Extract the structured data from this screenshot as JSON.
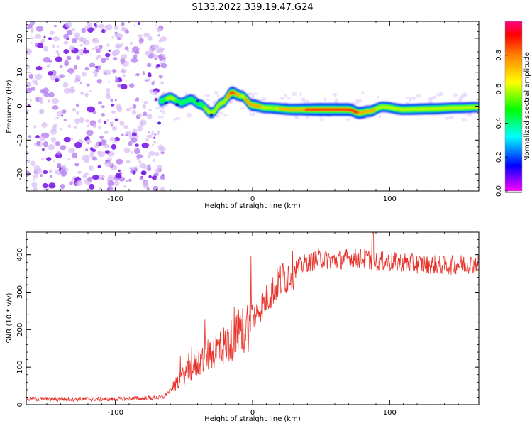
{
  "title": "S133.2022.339.19.47.G24",
  "chart_data": [
    {
      "type": "heatmap",
      "xlabel": "Height of straight line (km)",
      "ylabel": "Frequency (Hz)",
      "xlim": [
        -165,
        165
      ],
      "ylim": [
        -25,
        25
      ],
      "xticks": [
        -100,
        0,
        100
      ],
      "yticks": [
        -20,
        -10,
        0,
        10,
        20
      ],
      "colorbar": {
        "label": "Normalized spectral amplitude",
        "range": [
          0,
          1
        ],
        "ticks": [
          0.0,
          0.2,
          0.4,
          0.6,
          0.8
        ]
      },
      "noise_region_x": [
        -165,
        -70
      ],
      "ridge": [
        {
          "x": -67,
          "f": 1.5,
          "a": 0.5
        },
        {
          "x": -60,
          "f": 2.5,
          "a": 0.55
        },
        {
          "x": -52,
          "f": 1.0,
          "a": 0.5
        },
        {
          "x": -45,
          "f": 2.0,
          "a": 0.5
        },
        {
          "x": -38,
          "f": 0.5,
          "a": 0.5
        },
        {
          "x": -30,
          "f": -2.0,
          "a": 0.6
        },
        {
          "x": -22,
          "f": 1.0,
          "a": 0.55
        },
        {
          "x": -15,
          "f": 4.0,
          "a": 0.9
        },
        {
          "x": -8,
          "f": 3.0,
          "a": 0.65
        },
        {
          "x": 0,
          "f": 0.3,
          "a": 0.85
        },
        {
          "x": 10,
          "f": -0.5,
          "a": 0.65
        },
        {
          "x": 30,
          "f": -1.0,
          "a": 0.75
        },
        {
          "x": 50,
          "f": -1.0,
          "a": 1.0
        },
        {
          "x": 70,
          "f": -1.0,
          "a": 0.95
        },
        {
          "x": 78,
          "f": -2.0,
          "a": 0.85
        },
        {
          "x": 85,
          "f": -1.5,
          "a": 0.75
        },
        {
          "x": 95,
          "f": -0.2,
          "a": 0.6
        },
        {
          "x": 110,
          "f": -1.0,
          "a": 0.65
        },
        {
          "x": 130,
          "f": -0.8,
          "a": 0.7
        },
        {
          "x": 150,
          "f": -0.5,
          "a": 0.65
        },
        {
          "x": 165,
          "f": -0.3,
          "a": 0.6
        }
      ]
    },
    {
      "type": "line",
      "xlabel": "Height of straight line (km)",
      "ylabel": "SNR (10 * v/v)",
      "xlim": [
        -165,
        165
      ],
      "ylim": [
        0,
        460
      ],
      "xticks": [
        -100,
        0,
        100
      ],
      "yticks": [
        0,
        100,
        200,
        300,
        400
      ],
      "color": "#e8322a",
      "series": [
        {
          "x": [
            -165,
            -140,
            -120,
            -100,
            -80,
            -65,
            -58,
            -50,
            -40,
            -30,
            -20,
            -10,
            0,
            10,
            20,
            30,
            40,
            50,
            60,
            70,
            80,
            90,
            100,
            110,
            120,
            130,
            140,
            150,
            165
          ],
          "y": [
            15,
            15,
            15,
            15,
            17,
            20,
            45,
            80,
            110,
            140,
            160,
            185,
            230,
            280,
            330,
            360,
            380,
            390,
            385,
            390,
            390,
            385,
            380,
            380,
            375,
            375,
            370,
            375,
            375
          ]
        }
      ]
    }
  ]
}
